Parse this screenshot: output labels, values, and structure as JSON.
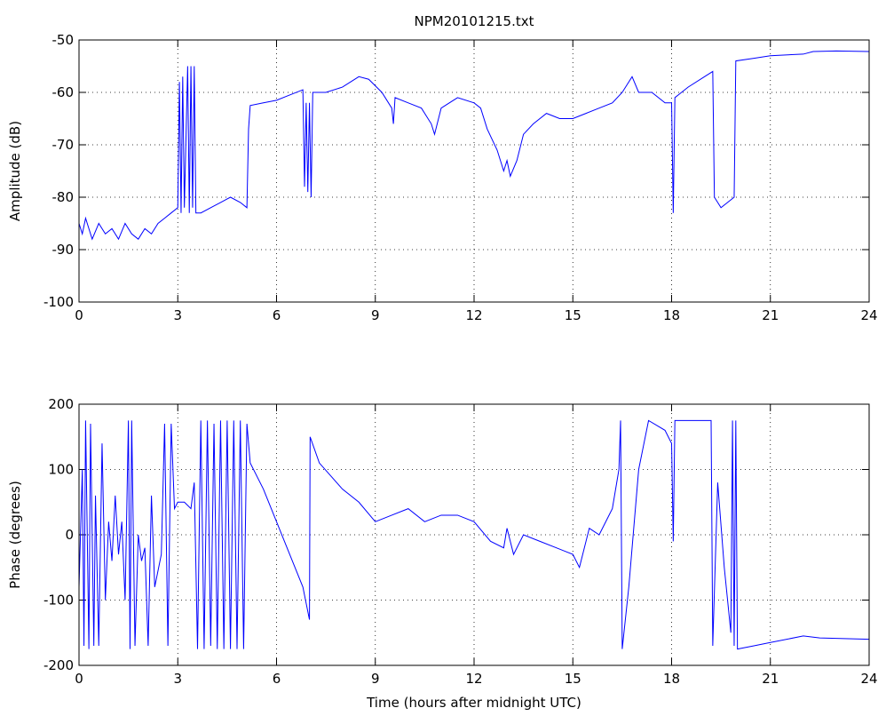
{
  "chart_data": [
    {
      "type": "line",
      "title": "NPM20101215.txt",
      "y_label": "Amplitude (dB)",
      "color": "#0000ff",
      "grid": true,
      "xlim": [
        0,
        24
      ],
      "xticks": [
        0,
        3,
        6,
        9,
        12,
        15,
        18,
        21,
        24
      ],
      "ylim": [
        -100,
        -50
      ],
      "yticks": [
        -100,
        -90,
        -80,
        -70,
        -60,
        -50
      ],
      "x": [
        0,
        0.1,
        0.2,
        0.4,
        0.6,
        0.8,
        1.0,
        1.2,
        1.4,
        1.6,
        1.8,
        2.0,
        2.2,
        2.4,
        2.6,
        2.8,
        3.0,
        3.05,
        3.1,
        3.15,
        3.2,
        3.3,
        3.35,
        3.4,
        3.45,
        3.5,
        3.55,
        3.7,
        4.0,
        4.3,
        4.6,
        4.9,
        5.1,
        5.15,
        5.2,
        5.6,
        6.0,
        6.4,
        6.8,
        6.85,
        6.9,
        6.95,
        7.0,
        7.05,
        7.1,
        7.5,
        8.0,
        8.5,
        8.8,
        9.2,
        9.5,
        9.55,
        9.6,
        10.0,
        10.4,
        10.7,
        10.8,
        11.0,
        11.5,
        12.0,
        12.2,
        12.4,
        12.7,
        12.9,
        13.0,
        13.1,
        13.3,
        13.5,
        13.8,
        14.2,
        14.6,
        15.0,
        15.4,
        15.8,
        16.2,
        16.5,
        16.8,
        17.0,
        17.4,
        17.8,
        18.0,
        18.05,
        18.1,
        18.5,
        19.0,
        19.25,
        19.3,
        19.5,
        19.7,
        19.9,
        19.95,
        20.5,
        21.0,
        22.0,
        22.3,
        23.0,
        24.0
      ],
      "values": [
        -85,
        -87,
        -84,
        -88,
        -85,
        -87,
        -86,
        -88,
        -85,
        -87,
        -88,
        -86,
        -87,
        -85,
        -84,
        -83,
        -82,
        -58,
        -83,
        -57,
        -82,
        -55,
        -83,
        -55,
        -82,
        -55,
        -83,
        -83,
        -82,
        -81,
        -80,
        -81,
        -82,
        -67,
        -62.5,
        -62,
        -61.5,
        -60.5,
        -59.5,
        -78,
        -62,
        -79,
        -62,
        -80,
        -60,
        -60,
        -59,
        -57,
        -57.5,
        -60,
        -63,
        -66,
        -61,
        -62,
        -63,
        -66,
        -68,
        -63,
        -61,
        -62,
        -63,
        -67,
        -71,
        -75,
        -73,
        -76,
        -73,
        -68,
        -66,
        -64,
        -65,
        -65,
        -64,
        -63,
        -62,
        -60,
        -57,
        -60,
        -60,
        -62,
        -62,
        -83,
        -61,
        -59,
        -57,
        -56,
        -80,
        -82,
        -81,
        -80,
        -54,
        -53.5,
        -53,
        -52.7,
        -52.2,
        -52.1,
        -52.2
      ]
    },
    {
      "type": "line",
      "x_label": "Time (hours after midnight UTC)",
      "y_label": "Phase (degrees)",
      "color": "#0000ff",
      "grid": true,
      "xlim": [
        0,
        24
      ],
      "xticks": [
        0,
        3,
        6,
        9,
        12,
        15,
        18,
        21,
        24
      ],
      "ylim": [
        -200,
        200
      ],
      "yticks": [
        -200,
        -100,
        0,
        100,
        200
      ],
      "x": [
        0,
        0.1,
        0.15,
        0.2,
        0.3,
        0.35,
        0.45,
        0.5,
        0.6,
        0.7,
        0.8,
        0.9,
        1.0,
        1.1,
        1.2,
        1.3,
        1.4,
        1.5,
        1.55,
        1.6,
        1.7,
        1.8,
        1.9,
        2.0,
        2.1,
        2.2,
        2.3,
        2.5,
        2.6,
        2.7,
        2.8,
        2.9,
        3.0,
        3.2,
        3.4,
        3.5,
        3.6,
        3.7,
        3.8,
        3.9,
        4.0,
        4.1,
        4.2,
        4.3,
        4.4,
        4.5,
        4.6,
        4.7,
        4.8,
        4.9,
        5.0,
        5.1,
        5.2,
        5.6,
        6.0,
        6.4,
        6.8,
        7.0,
        7.02,
        7.3,
        8.0,
        8.5,
        9.0,
        9.5,
        10.0,
        10.5,
        11.0,
        11.5,
        12.0,
        12.5,
        12.9,
        13.0,
        13.2,
        13.5,
        14.0,
        14.5,
        15.0,
        15.2,
        15.5,
        15.8,
        16.2,
        16.4,
        16.45,
        16.5,
        16.7,
        17.0,
        17.3,
        17.8,
        18.0,
        18.05,
        18.1,
        19.2,
        19.25,
        19.4,
        19.6,
        19.8,
        19.85,
        19.9,
        19.95,
        20.0,
        20.5,
        21.0,
        22.0,
        22.5,
        24.0
      ],
      "values": [
        -80,
        100,
        -170,
        175,
        -175,
        170,
        -170,
        60,
        -170,
        140,
        -100,
        20,
        -40,
        60,
        -30,
        20,
        -100,
        175,
        -175,
        175,
        -170,
        0,
        -40,
        -20,
        -170,
        60,
        -80,
        -30,
        170,
        -170,
        170,
        40,
        50,
        50,
        40,
        80,
        -175,
        175,
        -175,
        175,
        -170,
        170,
        -175,
        175,
        -175,
        175,
        -175,
        175,
        -175,
        175,
        -175,
        170,
        110,
        70,
        20,
        -30,
        -80,
        -130,
        150,
        110,
        70,
        50,
        20,
        30,
        40,
        20,
        30,
        30,
        20,
        -10,
        -20,
        10,
        -30,
        0,
        -10,
        -20,
        -30,
        -50,
        10,
        0,
        40,
        100,
        175,
        -175,
        -80,
        100,
        175,
        160,
        140,
        -10,
        175,
        175,
        -170,
        80,
        -50,
        -150,
        175,
        -170,
        175,
        -175,
        -170,
        -165,
        -155,
        -158,
        -160
      ]
    }
  ]
}
